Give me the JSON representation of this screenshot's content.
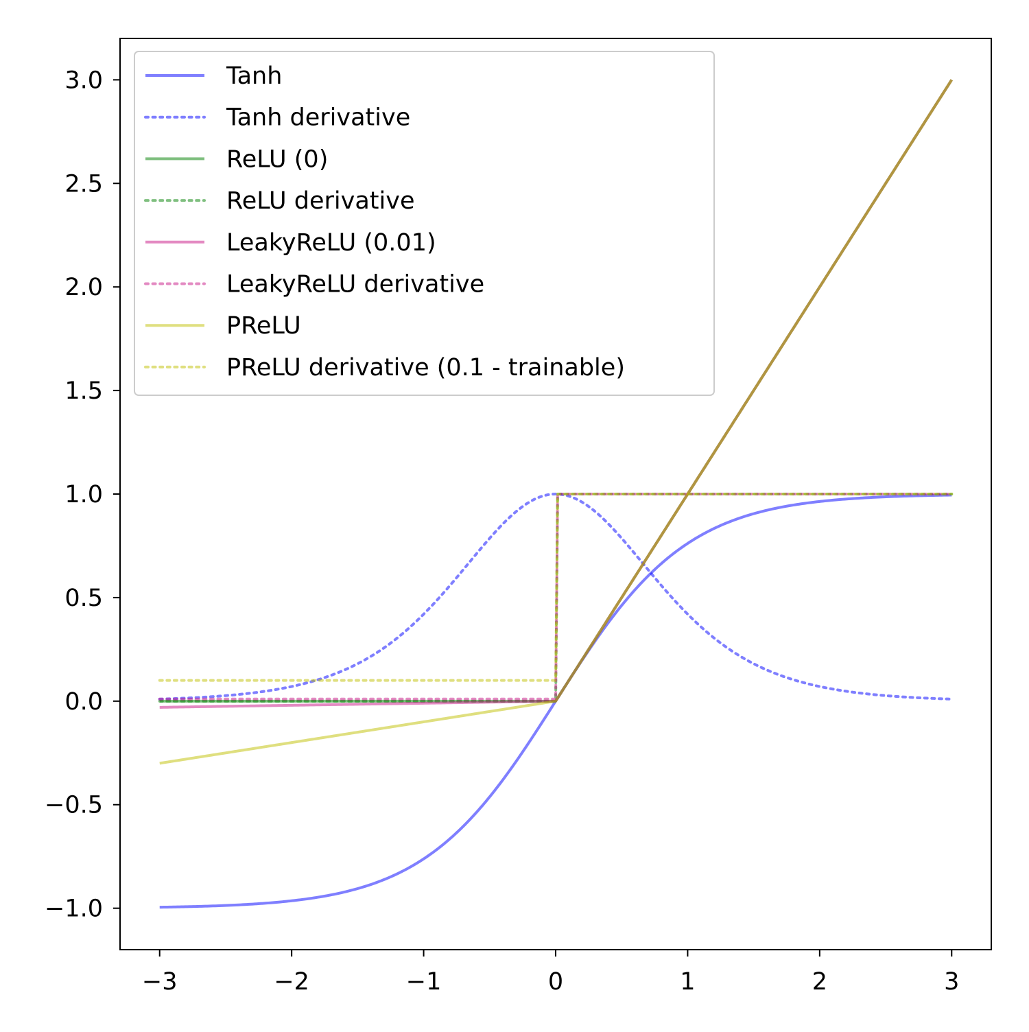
{
  "chart_data": {
    "type": "line",
    "title": "",
    "xlabel": "",
    "ylabel": "",
    "xlim": [
      -3.3,
      3.3
    ],
    "ylim": [
      -1.2,
      3.2
    ],
    "xticks": [
      -3,
      -2,
      -1,
      0,
      1,
      2,
      3
    ],
    "xtick_labels": [
      "−3",
      "−2",
      "−1",
      "0",
      "1",
      "2",
      "3"
    ],
    "yticks": [
      -1.0,
      -0.5,
      0.0,
      0.5,
      1.0,
      1.5,
      2.0,
      2.5,
      3.0
    ],
    "ytick_labels": [
      "−1.0",
      "−0.5",
      "0.0",
      "0.5",
      "1.0",
      "1.5",
      "2.0",
      "2.5",
      "3.0"
    ],
    "grid": false,
    "legend_position": "top-left",
    "x_domain": [
      -3,
      3
    ],
    "series": [
      {
        "name": "Tanh",
        "function": "tanh",
        "style": "solid",
        "color": "#0000ff"
      },
      {
        "name": "Tanh derivative",
        "function": "tanh_derivative",
        "style": "dotted",
        "color": "#0000ff"
      },
      {
        "name": "ReLU (0)",
        "function": "relu",
        "slope": 0,
        "style": "solid",
        "color": "#008000"
      },
      {
        "name": "ReLU derivative",
        "function": "relu_derivative",
        "slope": 0,
        "style": "dotted",
        "color": "#008000"
      },
      {
        "name": "LeakyReLU (0.01)",
        "function": "relu",
        "slope": 0.01,
        "style": "solid",
        "color": "#c71585"
      },
      {
        "name": "LeakyReLU derivative",
        "function": "relu_derivative",
        "slope": 0.01,
        "style": "dotted",
        "color": "#c71585"
      },
      {
        "name": "PReLU",
        "function": "relu",
        "slope": 0.1,
        "style": "solid",
        "color": "#bfbf00"
      },
      {
        "name": "PReLU derivative (0.1 - trainable)",
        "function": "relu_derivative",
        "slope": 0.1,
        "style": "dotted",
        "color": "#bfbf00"
      }
    ]
  }
}
